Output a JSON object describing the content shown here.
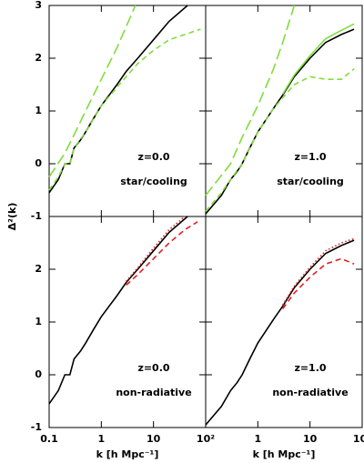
{
  "chart_data": [
    {
      "type": "line",
      "xscale": "log",
      "xlim": [
        0.1,
        100
      ],
      "ylim": [
        -1,
        3
      ],
      "xticks": [
        0.1,
        1,
        10,
        100
      ],
      "yticks": [
        -1,
        0,
        1,
        2,
        3
      ],
      "show_xticklabels": false,
      "show_yticklabels": true,
      "ylabel": "Δ²(k)",
      "annotations": [
        "z=0.0",
        "star/cooling"
      ],
      "series": [
        {
          "color": "#000000",
          "dash": "solid",
          "x": [
            0.1,
            0.15,
            0.2,
            0.25,
            0.3,
            0.4,
            0.5,
            0.7,
            1,
            2,
            3,
            5,
            10,
            20,
            45
          ],
          "values": [
            -0.55,
            -0.3,
            0.0,
            0.0,
            0.3,
            0.45,
            0.6,
            0.85,
            1.1,
            1.5,
            1.75,
            2.0,
            2.35,
            2.7,
            3.0
          ]
        },
        {
          "color": "#80dd3a",
          "dash": "long-dash",
          "x": [
            0.1,
            0.2,
            0.3,
            0.5,
            1,
            2,
            3,
            4.5
          ],
          "values": [
            -0.25,
            0.2,
            0.55,
            1.0,
            1.6,
            2.2,
            2.6,
            3.0
          ]
        },
        {
          "color": "#80dd3a",
          "dash": "short-dash",
          "x": [
            0.1,
            0.15,
            0.2,
            0.25,
            0.3,
            0.5,
            1,
            2,
            3,
            5,
            10,
            20,
            40,
            80
          ],
          "values": [
            -0.5,
            -0.25,
            0.0,
            0.0,
            0.3,
            0.6,
            1.1,
            1.45,
            1.65,
            1.9,
            2.15,
            2.35,
            2.45,
            2.55
          ]
        }
      ]
    },
    {
      "type": "line",
      "xscale": "log",
      "xlim": [
        0.1,
        100
      ],
      "ylim": [
        -1,
        3
      ],
      "xticks": [
        0.1,
        1,
        10,
        100
      ],
      "yticks": [
        -1,
        0,
        1,
        2,
        3
      ],
      "show_xticklabels": false,
      "show_yticklabels": false,
      "annotations": [
        "z=1.0",
        "star/cooling"
      ],
      "series": [
        {
          "color": "#000000",
          "dash": "solid",
          "x": [
            0.1,
            0.2,
            0.3,
            0.4,
            0.5,
            0.7,
            1,
            2,
            3,
            5,
            10,
            20,
            40,
            70
          ],
          "values": [
            -0.95,
            -0.6,
            -0.3,
            -0.15,
            0.0,
            0.3,
            0.6,
            1.05,
            1.3,
            1.65,
            2.0,
            2.3,
            2.45,
            2.55
          ]
        },
        {
          "color": "#80dd3a",
          "dash": "solid",
          "x": [
            3,
            5,
            10,
            20,
            40,
            70
          ],
          "values": [
            1.32,
            1.68,
            2.05,
            2.37,
            2.53,
            2.65
          ]
        },
        {
          "color": "#80dd3a",
          "dash": "long-dash",
          "x": [
            0.1,
            0.3,
            0.5,
            1,
            2,
            3,
            5
          ],
          "values": [
            -0.6,
            0.0,
            0.5,
            1.1,
            1.8,
            2.3,
            3.0
          ]
        },
        {
          "color": "#80dd3a",
          "dash": "short-dash",
          "x": [
            0.1,
            0.2,
            0.3,
            0.5,
            1,
            2,
            3,
            5,
            10,
            20,
            40,
            70
          ],
          "values": [
            -0.9,
            -0.55,
            -0.3,
            0.0,
            0.6,
            1.05,
            1.25,
            1.5,
            1.65,
            1.6,
            1.6,
            1.8
          ]
        }
      ]
    },
    {
      "type": "line",
      "xscale": "log",
      "xlim": [
        0.1,
        100
      ],
      "ylim": [
        -1,
        3
      ],
      "xticks": [
        0.1,
        1,
        10,
        {
          "value": 100,
          "label": "10²"
        }
      ],
      "yticks": [
        -1,
        0,
        1,
        2
      ],
      "show_xticklabels": true,
      "show_yticklabels": true,
      "xlabel": "k [h Mpc⁻¹]",
      "annotations": [
        "z=0.0",
        "non-radiative"
      ],
      "series": [
        {
          "color": "#000000",
          "dash": "solid",
          "x": [
            0.1,
            0.15,
            0.2,
            0.25,
            0.3,
            0.4,
            0.5,
            0.7,
            1,
            2,
            3,
            5,
            10,
            20,
            45
          ],
          "values": [
            -0.55,
            -0.3,
            0.0,
            0.0,
            0.3,
            0.45,
            0.6,
            0.85,
            1.1,
            1.5,
            1.75,
            2.0,
            2.35,
            2.7,
            3.0
          ]
        },
        {
          "color": "#e02020",
          "dash": "dotted",
          "x": [
            3,
            5,
            10,
            20,
            40
          ],
          "values": [
            1.77,
            2.03,
            2.4,
            2.75,
            3.0
          ]
        },
        {
          "color": "#e02020",
          "dash": "short-dash",
          "x": [
            3,
            5,
            10,
            20,
            40,
            70
          ],
          "values": [
            1.7,
            1.9,
            2.2,
            2.5,
            2.75,
            2.9
          ]
        }
      ]
    },
    {
      "type": "line",
      "xscale": "log",
      "xlim": [
        0.1,
        100
      ],
      "ylim": [
        -1,
        3
      ],
      "xticks": [
        0.1,
        1,
        10,
        {
          "value": 100,
          "label": "10²"
        }
      ],
      "yticks": [
        -1,
        0,
        1,
        2
      ],
      "show_xticklabels": true,
      "show_yticklabels": false,
      "hide_first_xticklabel": true,
      "xlabel": "k [h Mpc⁻¹]",
      "annotations": [
        "z=1.0",
        "non-radiative"
      ],
      "series": [
        {
          "color": "#000000",
          "dash": "solid",
          "x": [
            0.1,
            0.2,
            0.3,
            0.4,
            0.5,
            0.7,
            1,
            2,
            3,
            5,
            10,
            20,
            40,
            70
          ],
          "values": [
            -0.95,
            -0.6,
            -0.3,
            -0.15,
            0.0,
            0.3,
            0.6,
            1.05,
            1.3,
            1.65,
            2.0,
            2.3,
            2.45,
            2.55
          ]
        },
        {
          "color": "#e02020",
          "dash": "dotted",
          "x": [
            3,
            5,
            10,
            20,
            40,
            70
          ],
          "values": [
            1.32,
            1.68,
            2.04,
            2.35,
            2.5,
            2.58
          ]
        },
        {
          "color": "#e02020",
          "dash": "short-dash",
          "x": [
            3,
            5,
            10,
            20,
            40,
            70
          ],
          "values": [
            1.25,
            1.55,
            1.85,
            2.1,
            2.2,
            2.1
          ]
        }
      ]
    }
  ]
}
